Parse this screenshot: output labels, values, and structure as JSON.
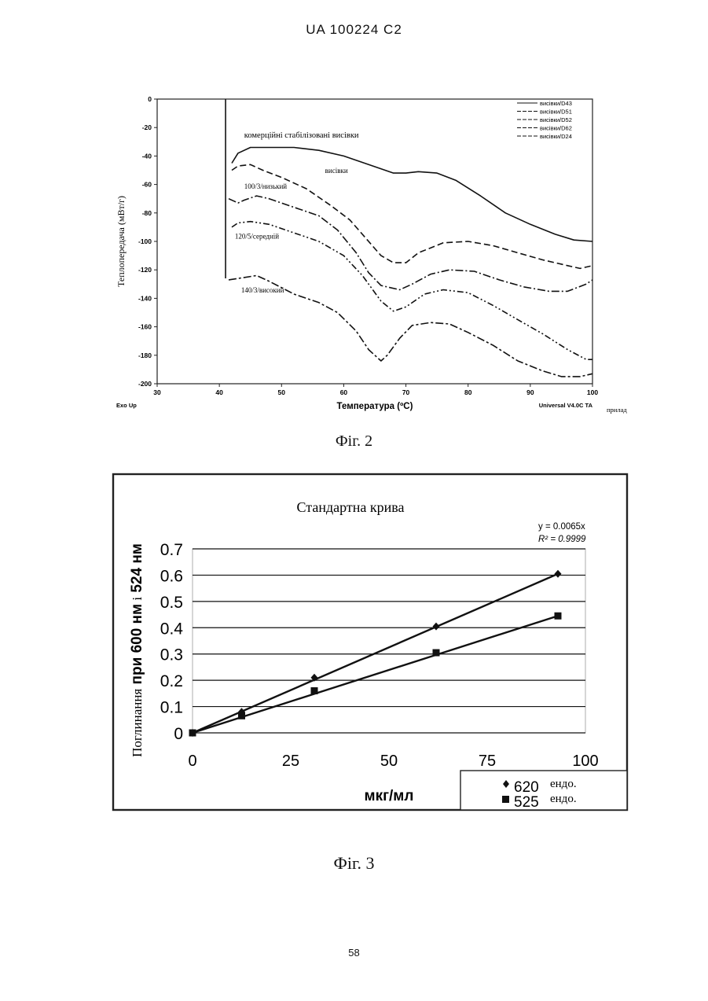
{
  "header": {
    "text": "UA   100224   C2"
  },
  "page_number": "58",
  "fig2": {
    "caption": "Фіг. 2",
    "chart_data": {
      "type": "line",
      "xlabel": "Температура (ºC)",
      "ylabel": "Теплопередача (мВт/г)",
      "xlim": [
        30,
        100
      ],
      "ylim": [
        -200,
        0
      ],
      "x_ticks": [
        "30",
        "40",
        "50",
        "60",
        "70",
        "80",
        "90",
        "100"
      ],
      "y_ticks": [
        "0",
        "-20",
        "-40",
        "-60",
        "-80",
        "-100",
        "-120",
        "-140",
        "-160",
        "-180",
        "-200"
      ],
      "footer_left": "Exo Up",
      "footer_right": "Universal V4.0C TA",
      "footer_note": "прилад",
      "legend": [
        "висівки/D43",
        "висівки/D51",
        "висівки/D52",
        "висівки/D62",
        "висівки/D24"
      ],
      "annotations": [
        {
          "text": "комерційні стабілізовані висівки",
          "x": 44,
          "y": -27
        },
        {
          "text": "висівки",
          "x": 57,
          "y": -52
        },
        {
          "text": "100/3/низький",
          "x": 44,
          "y": -63
        },
        {
          "text": "120/5/середній",
          "x": 42.5,
          "y": -98
        },
        {
          "text": "140/3/високий",
          "x": 43.5,
          "y": -136
        }
      ],
      "series": [
        {
          "name": "висівки/D43",
          "dash": "",
          "x": [
            42,
            43,
            45,
            48,
            52,
            56,
            60,
            64,
            68,
            70,
            72,
            75,
            78,
            82,
            86,
            90,
            94,
            97,
            100
          ],
          "y": [
            -45,
            -38,
            -34,
            -34,
            -34,
            -36,
            -40,
            -46,
            -52,
            -52,
            -51,
            -52,
            -57,
            -68,
            -80,
            -88,
            -95,
            -99,
            -100
          ]
        },
        {
          "name": "висівки/D51",
          "dash": "8,4",
          "x": [
            42,
            43,
            45,
            47,
            50,
            54,
            58,
            61,
            64,
            66,
            68,
            70,
            72,
            76,
            80,
            84,
            88,
            92,
            96,
            98,
            100
          ],
          "y": [
            -50,
            -47,
            -46,
            -50,
            -55,
            -63,
            -75,
            -85,
            -100,
            -110,
            -115,
            -115,
            -108,
            -101,
            -100,
            -103,
            -108,
            -113,
            -117,
            -119,
            -117
          ]
        },
        {
          "name": "висівки/D52",
          "dash": "10,3,2,3",
          "x": [
            41.5,
            43,
            44,
            46,
            48,
            52,
            56,
            59,
            62,
            64,
            66,
            69,
            71,
            74,
            77,
            81,
            85,
            89,
            93,
            96,
            99,
            100
          ],
          "y": [
            -70,
            -73,
            -71,
            -68,
            -70,
            -76,
            -82,
            -92,
            -108,
            -122,
            -131,
            -134,
            -130,
            -123,
            -120,
            -121,
            -127,
            -132,
            -135,
            -135,
            -130,
            -127
          ]
        },
        {
          "name": "висівки/D62",
          "dash": "8,3,2,3,2,3",
          "x": [
            42,
            43,
            45,
            48,
            52,
            56,
            60,
            63,
            66,
            68,
            70,
            73,
            76,
            80,
            84,
            88,
            92,
            96,
            99,
            100
          ],
          "y": [
            -90,
            -87,
            -86,
            -88,
            -94,
            -100,
            -110,
            -124,
            -142,
            -149,
            -146,
            -137,
            -134,
            -136,
            -145,
            -155,
            -165,
            -176,
            -183,
            -183
          ]
        },
        {
          "name": "висівки/D24",
          "dash": "10,3,3,3",
          "x": [
            41.5,
            43,
            46,
            48,
            52,
            56,
            59,
            62,
            64,
            66,
            67,
            69,
            71,
            74,
            77,
            80,
            84,
            88,
            92,
            95,
            98,
            100
          ],
          "y": [
            -127,
            -126,
            -124,
            -128,
            -137,
            -143,
            -150,
            -163,
            -176,
            -184,
            -180,
            -168,
            -159,
            -157,
            -158,
            -164,
            -173,
            -184,
            -191,
            -195,
            -195,
            -193
          ]
        }
      ]
    }
  },
  "fig3": {
    "caption": "Фіг. 3",
    "chart_data": {
      "type": "scatter",
      "title": "Стандартна крива",
      "xlabel": "мкг/мл",
      "ylabel_regular": "Поглинання",
      "ylabel_bold_1": "при 600 нм",
      "ylabel_regular_2": "і",
      "ylabel_bold_2": "524 нм",
      "xlim": [
        0,
        100
      ],
      "ylim": [
        0,
        0.7
      ],
      "x_ticks": [
        "0",
        "25",
        "50",
        "75",
        "100"
      ],
      "y_ticks": [
        "0",
        "0.1",
        "0.2",
        "0.3",
        "0.4",
        "0.5",
        "0.6",
        "0.7"
      ],
      "equation": "y = 0.0065x",
      "r2": "R² = 0.9999",
      "grid": true,
      "legend_placement": "bottom-right",
      "series": [
        {
          "name": "620",
          "suffix": "ендо.",
          "marker": "diamond",
          "x": [
            0,
            12.5,
            31,
            62,
            93
          ],
          "y": [
            0,
            0.08,
            0.21,
            0.405,
            0.605
          ]
        },
        {
          "name": "525",
          "suffix": "ендо.",
          "marker": "square",
          "x": [
            0,
            12.5,
            31,
            62,
            93
          ],
          "y": [
            0,
            0.065,
            0.16,
            0.305,
            0.445
          ]
        }
      ]
    }
  }
}
